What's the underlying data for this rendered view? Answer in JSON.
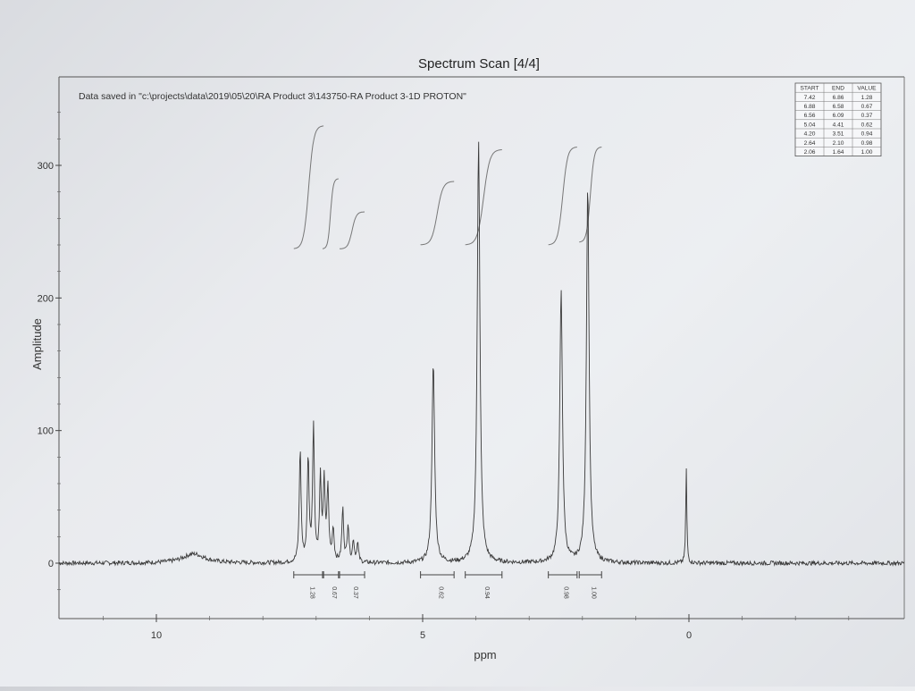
{
  "chart_data": {
    "type": "line",
    "title": "Spectrum Scan [4/4]",
    "annotation": "Data saved in \"c:\\projects\\data\\2019\\05\\20\\RA Product 3\\143750-RA Product 3-1D PROTON\"",
    "xlabel": "ppm",
    "ylabel": "Amplitude",
    "xlim": [
      11.7,
      -3.5
    ],
    "ylim": [
      -40,
      370
    ],
    "x_axis_reversed": true,
    "grid": false,
    "x_ticks": [
      10,
      5,
      0
    ],
    "y_ticks": [
      0,
      100,
      200,
      300
    ],
    "x_tick_labels": [
      "10",
      "5",
      "0"
    ],
    "y_tick_labels": [
      "0",
      "100",
      "200",
      "300"
    ],
    "peaks": [
      {
        "ppm": 9.3,
        "height": 7,
        "width": 0.25
      },
      {
        "ppm": 7.3,
        "height": 85,
        "width": 0.02
      },
      {
        "ppm": 7.15,
        "height": 78,
        "width": 0.02
      },
      {
        "ppm": 7.05,
        "height": 102,
        "width": 0.02
      },
      {
        "ppm": 6.92,
        "height": 62,
        "width": 0.02
      },
      {
        "ppm": 6.85,
        "height": 60,
        "width": 0.02
      },
      {
        "ppm": 6.78,
        "height": 55,
        "width": 0.02
      },
      {
        "ppm": 6.68,
        "height": 25,
        "width": 0.02
      },
      {
        "ppm": 6.5,
        "height": 40,
        "width": 0.02
      },
      {
        "ppm": 6.4,
        "height": 28,
        "width": 0.02
      },
      {
        "ppm": 6.3,
        "height": 16,
        "width": 0.02
      },
      {
        "ppm": 6.22,
        "height": 14,
        "width": 0.02
      },
      {
        "ppm": 4.8,
        "height": 150,
        "width": 0.03
      },
      {
        "ppm": 3.95,
        "height": 320,
        "width": 0.03
      },
      {
        "ppm": 2.4,
        "height": 205,
        "width": 0.03
      },
      {
        "ppm": 1.9,
        "height": 285,
        "width": 0.03
      },
      {
        "ppm": 0.05,
        "height": 72,
        "width": 0.012
      }
    ],
    "integration_regions": [
      {
        "start": 7.42,
        "end": 6.86,
        "value": "1.28"
      },
      {
        "start": 6.88,
        "end": 6.58,
        "value": "0.67"
      },
      {
        "start": 6.56,
        "end": 6.09,
        "value": "0.37"
      },
      {
        "start": 5.04,
        "end": 4.41,
        "value": "0.62"
      },
      {
        "start": 4.2,
        "end": 3.51,
        "value": "0.94"
      },
      {
        "start": 2.64,
        "end": 2.1,
        "value": "0.98"
      },
      {
        "start": 2.06,
        "end": 1.64,
        "value": "1.00"
      }
    ],
    "integral_curves": [
      {
        "start": 7.42,
        "end": 6.86,
        "y0": 237,
        "y1": 330
      },
      {
        "start": 6.88,
        "end": 6.58,
        "y0": 237,
        "y1": 290
      },
      {
        "start": 6.56,
        "end": 6.09,
        "y0": 237,
        "y1": 265
      },
      {
        "start": 5.04,
        "end": 4.41,
        "y0": 240,
        "y1": 288
      },
      {
        "start": 4.2,
        "end": 3.51,
        "y0": 240,
        "y1": 312
      },
      {
        "start": 2.64,
        "end": 2.1,
        "y0": 240,
        "y1": 314
      },
      {
        "start": 2.06,
        "end": 1.64,
        "y0": 242,
        "y1": 314
      }
    ],
    "integral_table": {
      "headers": [
        "START",
        "END",
        "VALUE"
      ],
      "rows": [
        [
          "7.42",
          "6.86",
          "1.28"
        ],
        [
          "6.88",
          "6.58",
          "0.67"
        ],
        [
          "6.56",
          "6.09",
          "0.37"
        ],
        [
          "5.04",
          "4.41",
          "0.62"
        ],
        [
          "4.20",
          "3.51",
          "0.94"
        ],
        [
          "2.64",
          "2.10",
          "0.98"
        ],
        [
          "2.06",
          "1.64",
          "1.00"
        ]
      ]
    }
  }
}
